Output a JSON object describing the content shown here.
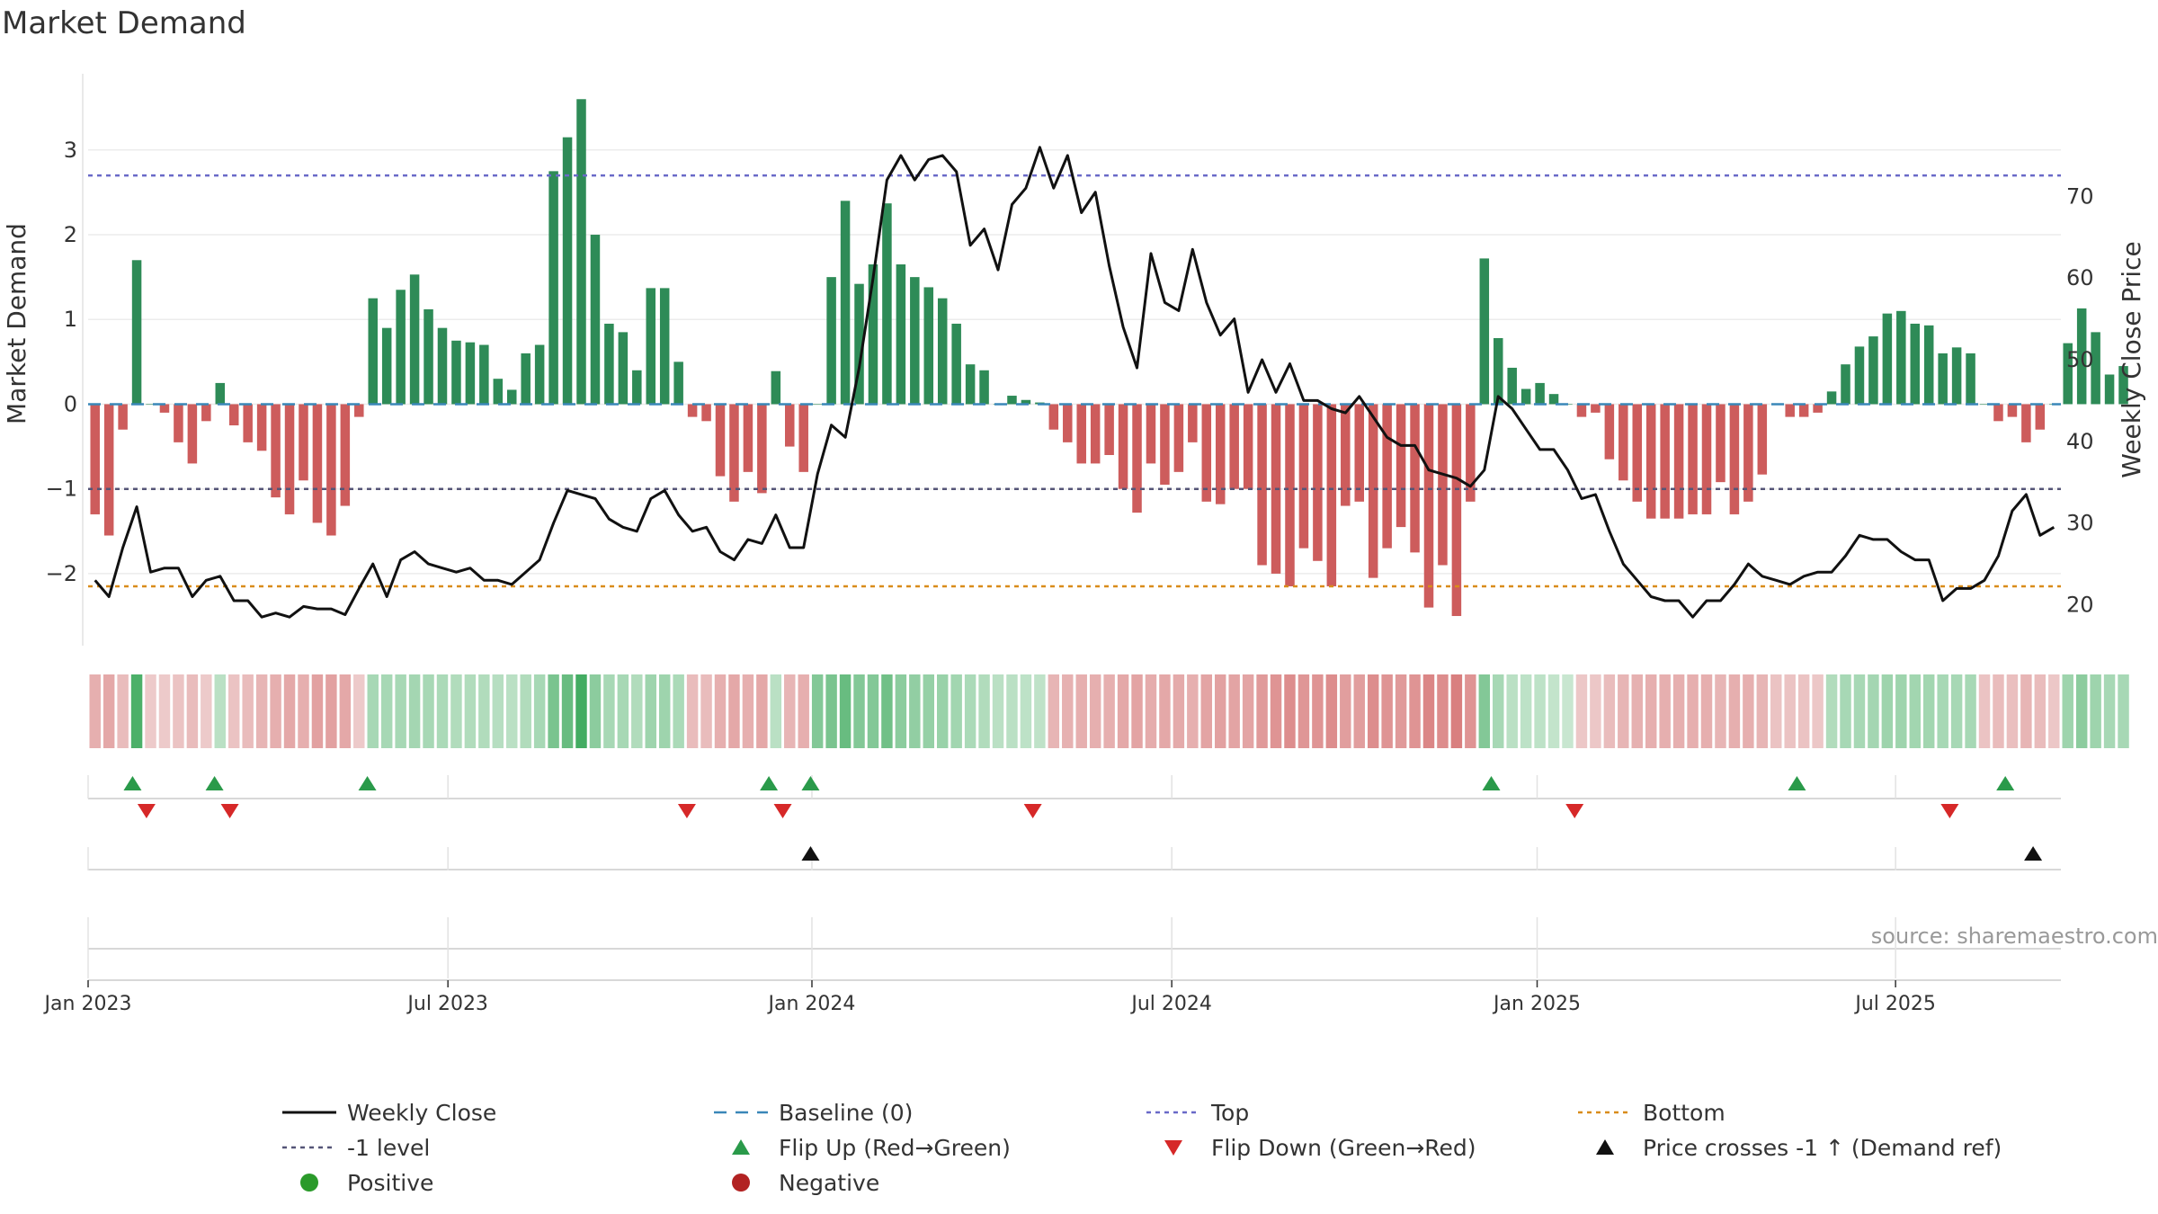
{
  "chart_data": {
    "type": "bar",
    "title": "Market Demand",
    "ylabel_left": "Market Demand",
    "ylabel_right": "Weekly Close Price",
    "left_axis": {
      "ylim": [
        -2.85,
        3.9
      ],
      "ticks": [
        -2,
        -1,
        0,
        1,
        2,
        3
      ]
    },
    "right_axis": {
      "ylim": [
        15,
        85
      ],
      "ticks": [
        20,
        30,
        40,
        50,
        60,
        70
      ]
    },
    "x_range": {
      "start": 0,
      "end": 142
    },
    "date_ticks": [
      {
        "label": "Jan 2023",
        "week": 0
      },
      {
        "label": "Jul 2023",
        "week": 25.9
      },
      {
        "label": "Jan 2024",
        "week": 52.1
      },
      {
        "label": "Jul 2024",
        "week": 78
      },
      {
        "label": "Jan 2025",
        "week": 104.3
      },
      {
        "label": "Jul 2025",
        "week": 130.1
      }
    ],
    "reference_lines": {
      "top": 2.7,
      "baseline": 0,
      "minus_one_level": -1,
      "bottom": -2.15
    },
    "demand": [
      -1.3,
      -1.55,
      -0.3,
      1.7,
      0,
      -0.1,
      -0.45,
      -0.7,
      -0.2,
      0.25,
      -0.25,
      -0.45,
      -0.55,
      -1.1,
      -1.3,
      -0.9,
      -1.4,
      -1.55,
      -1.2,
      -0.15,
      1.25,
      0.9,
      1.35,
      1.53,
      1.12,
      0.9,
      0.75,
      0.73,
      0.7,
      0.3,
      0.17,
      0.6,
      0.7,
      2.75,
      3.15,
      3.6,
      2.0,
      0.95,
      0.85,
      0.4,
      1.37,
      1.37,
      0.5,
      -0.15,
      -0.2,
      -0.85,
      -1.15,
      -0.8,
      -1.05,
      0.39,
      -0.5,
      -0.8,
      0,
      1.5,
      2.4,
      1.42,
      1.65,
      2.37,
      1.65,
      1.5,
      1.38,
      1.25,
      0.95,
      0.47,
      0.4,
      0,
      0.1,
      0.05,
      0.02,
      -0.3,
      -0.45,
      -0.7,
      -0.7,
      -0.6,
      -1.0,
      -1.28,
      -0.7,
      -0.95,
      -0.8,
      -0.45,
      -1.15,
      -1.18,
      -1.0,
      -1.0,
      -1.9,
      -2.0,
      -2.15,
      -1.7,
      -1.85,
      -2.15,
      -1.2,
      -1.15,
      -2.05,
      -1.7,
      -1.45,
      -1.75,
      -2.4,
      -1.9,
      -2.5,
      -1.15,
      1.72,
      0.78,
      0.43,
      0.18,
      0.25,
      0.12,
      0,
      -0.15,
      -0.1,
      -0.65,
      -0.9,
      -1.15,
      -1.35,
      -1.35,
      -1.35,
      -1.3,
      -1.3,
      -0.92,
      -1.3,
      -1.15,
      -0.83,
      0,
      -0.15,
      -0.15,
      -0.1,
      0.15,
      0.47,
      0.68,
      0.8,
      1.07,
      1.1,
      0.95,
      0.93,
      0.6,
      0.67,
      0.6,
      0,
      -0.2,
      -0.15,
      -0.45,
      -0.3,
      0,
      0.72,
      1.13,
      0.85,
      0.35,
      0.45
    ],
    "weekly_close": [
      23,
      21,
      27,
      32,
      24,
      24.5,
      24.5,
      21,
      23,
      23.5,
      20.5,
      20.5,
      18.5,
      19,
      18.5,
      19.8,
      19.5,
      19.5,
      18.8,
      22,
      25,
      21,
      25.5,
      26.5,
      25,
      24.5,
      24,
      24.5,
      23,
      23,
      22.5,
      24,
      25.5,
      30,
      34,
      33.5,
      33,
      30.5,
      29.5,
      29,
      33,
      34,
      31,
      29,
      29.5,
      26.5,
      25.5,
      28,
      27.5,
      31,
      27,
      27,
      36,
      42,
      40.5,
      49,
      60,
      72,
      75,
      72,
      74.5,
      75,
      73,
      64,
      66,
      61,
      69,
      71,
      76,
      71,
      75,
      68,
      70.5,
      61.5,
      54,
      49,
      63,
      57,
      56,
      63.5,
      57,
      53,
      55,
      46,
      50,
      46,
      49.5,
      45,
      45,
      44,
      43.5,
      45.5,
      43,
      40.5,
      39.5,
      39.5,
      36.5,
      36,
      35.5,
      34.5,
      36.5,
      45.5,
      44,
      41.5,
      39,
      39,
      36.5,
      33,
      33.5,
      29,
      25,
      23,
      21,
      20.5,
      20.5,
      18.5,
      20.5,
      20.5,
      22.5,
      25,
      23.5,
      23,
      22.5,
      23.5,
      24,
      24,
      26,
      28.5,
      28,
      28,
      26.5,
      25.5,
      25.5,
      20.5,
      22,
      22,
      23,
      26,
      31.5,
      33.5,
      28.5,
      29.5
    ],
    "strip_intensity": [
      -0.3,
      -0.35,
      -0.2,
      0.8,
      -0.1,
      -0.1,
      -0.15,
      -0.2,
      -0.1,
      0.2,
      -0.15,
      -0.2,
      -0.25,
      -0.3,
      -0.35,
      -0.3,
      -0.4,
      -0.4,
      -0.35,
      -0.1,
      0.3,
      0.3,
      0.3,
      0.32,
      0.3,
      0.28,
      0.25,
      0.25,
      0.25,
      0.22,
      0.2,
      0.25,
      0.3,
      0.55,
      0.65,
      0.85,
      0.45,
      0.3,
      0.3,
      0.25,
      0.35,
      0.35,
      0.28,
      -0.2,
      -0.2,
      -0.3,
      -0.35,
      -0.3,
      -0.35,
      0.2,
      -0.25,
      -0.3,
      0.5,
      0.55,
      0.65,
      0.5,
      0.5,
      0.6,
      0.45,
      0.42,
      0.4,
      0.38,
      0.33,
      0.28,
      0.25,
      0.2,
      0.2,
      0.18,
      0.17,
      -0.25,
      -0.28,
      -0.3,
      -0.3,
      -0.3,
      -0.35,
      -0.38,
      -0.32,
      -0.35,
      -0.33,
      -0.3,
      -0.38,
      -0.4,
      -0.38,
      -0.38,
      -0.45,
      -0.5,
      -0.55,
      -0.48,
      -0.5,
      -0.55,
      -0.42,
      -0.42,
      -0.55,
      -0.5,
      -0.45,
      -0.5,
      -0.6,
      -0.55,
      -0.65,
      -0.5,
      0.5,
      0.3,
      0.2,
      0.18,
      0.18,
      0.15,
      0.12,
      -0.12,
      -0.12,
      -0.2,
      -0.25,
      -0.28,
      -0.3,
      -0.3,
      -0.3,
      -0.3,
      -0.3,
      -0.25,
      -0.3,
      -0.3,
      -0.25,
      -0.15,
      -0.15,
      -0.15,
      -0.12,
      0.25,
      0.3,
      0.3,
      0.32,
      0.35,
      0.35,
      0.33,
      0.33,
      0.3,
      0.3,
      0.3,
      -0.15,
      -0.2,
      -0.18,
      -0.25,
      -0.2,
      -0.12,
      0.35,
      0.45,
      0.35,
      0.3,
      0.3
    ],
    "markers": {
      "flip_up_weeks": [
        3.2,
        9.1,
        20.1,
        49.0,
        52.0,
        101.0,
        123.0,
        138.0
      ],
      "flip_down_weeks": [
        4.2,
        10.2,
        43.1,
        50.0,
        68.0,
        107.0,
        134.0
      ],
      "price_cross_weeks": [
        52.0,
        140.0
      ]
    },
    "legend": [
      {
        "key": "weekly-close",
        "label": "Weekly Close",
        "kind": "line",
        "color": "#111111"
      },
      {
        "key": "baseline",
        "label": "Baseline (0)",
        "kind": "dash",
        "color": "#3a87b8"
      },
      {
        "key": "top",
        "label": "Top",
        "kind": "dot",
        "color": "#6a6ac8"
      },
      {
        "key": "bottom",
        "label": "Bottom",
        "kind": "dot",
        "color": "#d98c1a"
      },
      {
        "key": "minus-one",
        "label": "-1 level",
        "kind": "dot",
        "color": "#555577"
      },
      {
        "key": "flip-up",
        "label": "Flip Up (Red→Green)",
        "kind": "tri-up",
        "color": "#2a9a4a"
      },
      {
        "key": "flip-down",
        "label": "Flip Down (Green→Red)",
        "kind": "tri-down",
        "color": "#d62828"
      },
      {
        "key": "price-cross",
        "label": "Price crosses -1 ↑ (Demand ref)",
        "kind": "tri-up",
        "color": "#111111"
      },
      {
        "key": "positive",
        "label": "Positive",
        "kind": "circle",
        "color": "#2a9a2a"
      },
      {
        "key": "negative",
        "label": "Negative",
        "kind": "circle",
        "color": "#b22222"
      }
    ],
    "colors": {
      "positive_bar": "#2e8b57",
      "negative_bar": "#cd5c5c",
      "price_line": "#111111"
    },
    "source": "source: sharemaestro.com"
  }
}
